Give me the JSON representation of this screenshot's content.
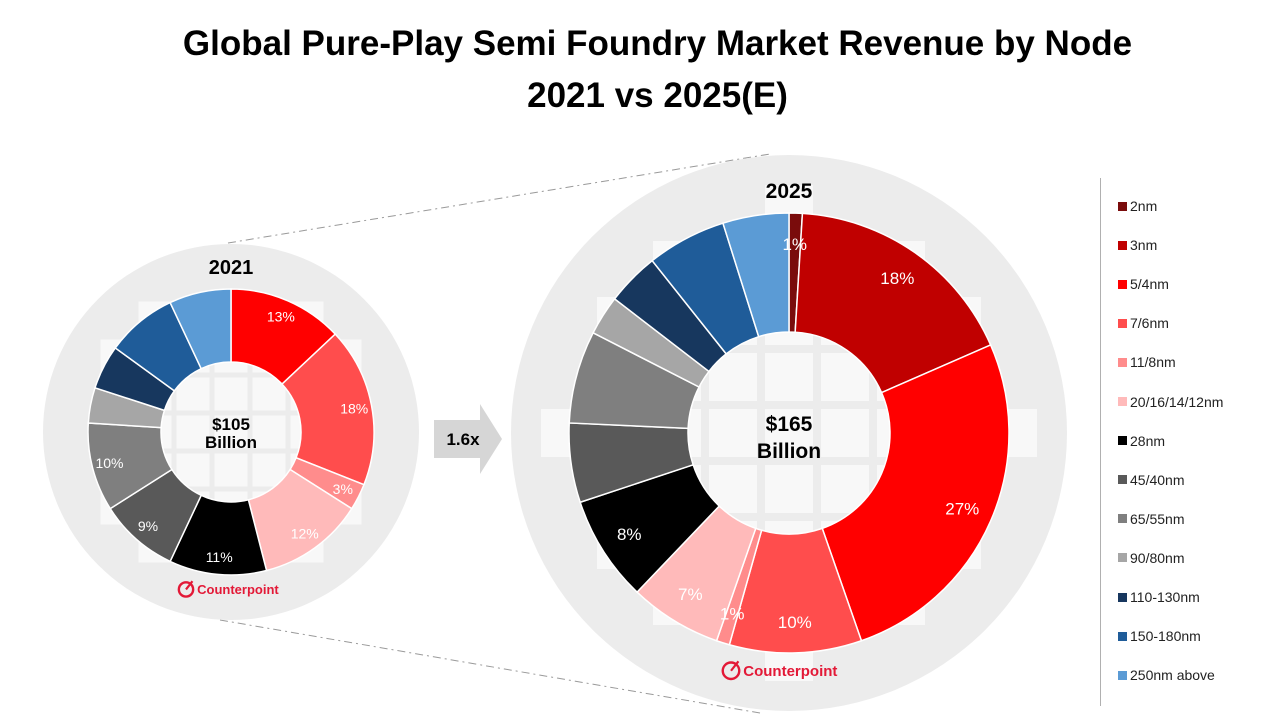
{
  "title_line1": "Global Pure-Play Semi Foundry Market Revenue by Node",
  "title_line2": "2021 vs 2025(E)",
  "growth_label": "1.6x",
  "brand": "Counterpoint",
  "colors": {
    "2nm": "#7a0c0c",
    "3nm": "#c00000",
    "5/4nm": "#ff0000",
    "7/6nm": "#ff4d4d",
    "11/8nm": "#ff8c8c",
    "20/16/14/12nm": "#ffbaba",
    "28nm": "#000000",
    "45/40nm": "#595959",
    "65/55nm": "#7f7f7f",
    "90/80nm": "#a6a6a6",
    "110-130nm": "#17375e",
    "150-180nm": "#1f5c99",
    "250nm above": "#5b9bd5",
    "wafer_bg": "#ececec",
    "wafer_die": "#f8f8f8",
    "brand_red": "#e31937"
  },
  "legend": [
    "2nm",
    "3nm",
    "5/4nm",
    "7/6nm",
    "11/8nm",
    "20/16/14/12nm",
    "28nm",
    "45/40nm",
    "65/55nm",
    "90/80nm",
    "110-130nm",
    "150-180nm",
    "250nm above"
  ],
  "chart_data": [
    {
      "type": "donut",
      "year": "2021",
      "center_value": "$105",
      "center_unit": "Billion",
      "slices": [
        {
          "name": "5/4nm",
          "value": 13,
          "label": "13%"
        },
        {
          "name": "7/6nm",
          "value": 18,
          "label": "18%"
        },
        {
          "name": "11/8nm",
          "value": 3,
          "label": "3%"
        },
        {
          "name": "20/16/14/12nm",
          "value": 12,
          "label": "12%"
        },
        {
          "name": "28nm",
          "value": 11,
          "label": "11%"
        },
        {
          "name": "45/40nm",
          "value": 9,
          "label": "9%"
        },
        {
          "name": "65/55nm",
          "value": 10,
          "label": "10%"
        },
        {
          "name": "90/80nm",
          "value": 4,
          "label": ""
        },
        {
          "name": "110-130nm",
          "value": 5,
          "label": ""
        },
        {
          "name": "150-180nm",
          "value": 8,
          "label": ""
        },
        {
          "name": "250nm above",
          "value": 7,
          "label": ""
        }
      ]
    },
    {
      "type": "donut",
      "year": "2025",
      "center_value": "$165",
      "center_unit": "Billion",
      "slices": [
        {
          "name": "2nm",
          "value": 1,
          "label": "1%"
        },
        {
          "name": "3nm",
          "value": 18,
          "label": "18%"
        },
        {
          "name": "5/4nm",
          "value": 27,
          "label": "27%"
        },
        {
          "name": "7/6nm",
          "value": 10,
          "label": "10%"
        },
        {
          "name": "11/8nm",
          "value": 1,
          "label": "1%"
        },
        {
          "name": "20/16/14/12nm",
          "value": 7,
          "label": "7%"
        },
        {
          "name": "28nm",
          "value": 8,
          "label": "8%"
        },
        {
          "name": "45/40nm",
          "value": 6,
          "label": ""
        },
        {
          "name": "65/55nm",
          "value": 7,
          "label": ""
        },
        {
          "name": "90/80nm",
          "value": 3,
          "label": ""
        },
        {
          "name": "110-130nm",
          "value": 4,
          "label": ""
        },
        {
          "name": "150-180nm",
          "value": 6,
          "label": ""
        },
        {
          "name": "250nm above",
          "value": 5,
          "label": ""
        }
      ]
    }
  ]
}
